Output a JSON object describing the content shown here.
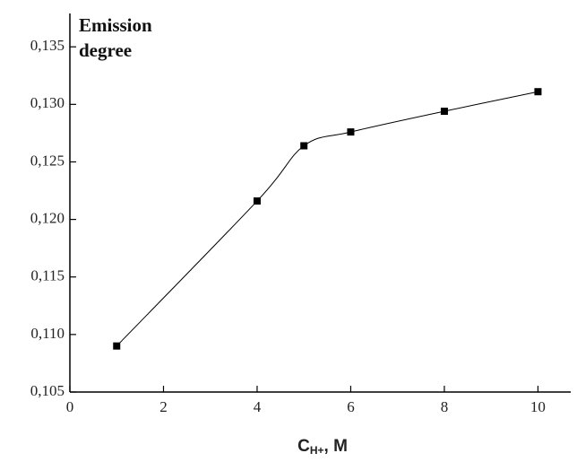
{
  "chart_data": {
    "type": "line",
    "title": "Emission degree",
    "x_label": "C",
    "x_label_sub": "H+",
    "x_label_suffix": ", M",
    "x": [
      1,
      4,
      5,
      6,
      8,
      10
    ],
    "series": [
      {
        "color": "#000000",
        "values": [
          0.109,
          0.1216,
          0.1264,
          0.1276,
          0.1294,
          0.1311
        ]
      }
    ],
    "xlim": [
      0,
      10.7
    ],
    "xticks": [
      0,
      2,
      4,
      6,
      8,
      10
    ],
    "ylim": [
      0.105,
      0.1379
    ],
    "yticks": [
      {
        "value": 0.105,
        "label": "0,105"
      },
      {
        "value": 0.11,
        "label": "0,110"
      },
      {
        "value": 0.115,
        "label": "0,115"
      },
      {
        "value": 0.12,
        "label": "0,120"
      },
      {
        "value": 0.125,
        "label": "0,125"
      },
      {
        "value": 0.13,
        "label": "0,130"
      },
      {
        "value": 0.135,
        "label": "0,135"
      }
    ],
    "smooth": true,
    "grid": false
  }
}
